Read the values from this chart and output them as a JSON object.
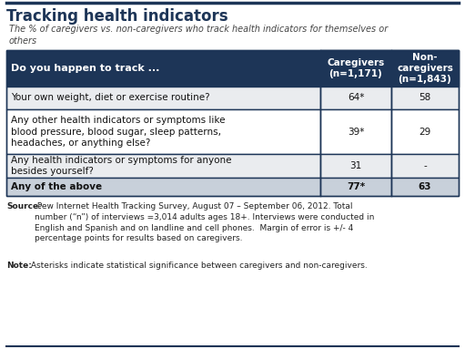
{
  "title": "Tracking health indicators",
  "subtitle": "The % of caregivers vs. non-caregivers who track health indicators for themselves or\nothers",
  "header_col1": "Do you happen to track ...",
  "header_col2": "Caregivers\n(n=1,171)",
  "header_col3": "Non-\ncaregivers\n(n=1,843)",
  "rows": [
    {
      "label": "Your own weight, diet or exercise routine?",
      "col2": "64*",
      "col3": "58",
      "bold": false,
      "shaded": false,
      "alt": true
    },
    {
      "label": "Any other health indicators or symptoms like\nblood pressure, blood sugar, sleep patterns,\nheadaches, or anything else?",
      "col2": "39*",
      "col3": "29",
      "bold": false,
      "shaded": false,
      "alt": false
    },
    {
      "label": "Any health indicators or symptoms for anyone\nbesides yourself?",
      "col2": "31",
      "col3": "-",
      "bold": false,
      "shaded": false,
      "alt": true
    },
    {
      "label": "Any of the above",
      "col2": "77*",
      "col3": "63",
      "bold": true,
      "shaded": true,
      "alt": false
    }
  ],
  "source_bold": "Source:",
  "source_text": " Pew Internet Health Tracking Survey, August 07 – September 06, 2012. Total\nnumber (“n”) of interviews =3,014 adults ages 18+. Interviews were conducted in\nEnglish and Spanish and on landline and cell phones.  Margin of error is +/- 4\npercentage points for results based on caregivers.",
  "note_bold": "Note:",
  "note_text": " Asterisks indicate statistical significance between caregivers and non-caregivers.",
  "header_bg": "#1d3557",
  "header_text_color": "#ffffff",
  "row_bg_alt": "#eaecef",
  "row_bg_white": "#ffffff",
  "last_row_bg": "#c8d0da",
  "border_color": "#1d3557",
  "title_color": "#1d3557",
  "subtitle_color": "#444444",
  "source_color": "#222222",
  "fig_bg": "#ffffff",
  "top_line_color": "#1d3557"
}
